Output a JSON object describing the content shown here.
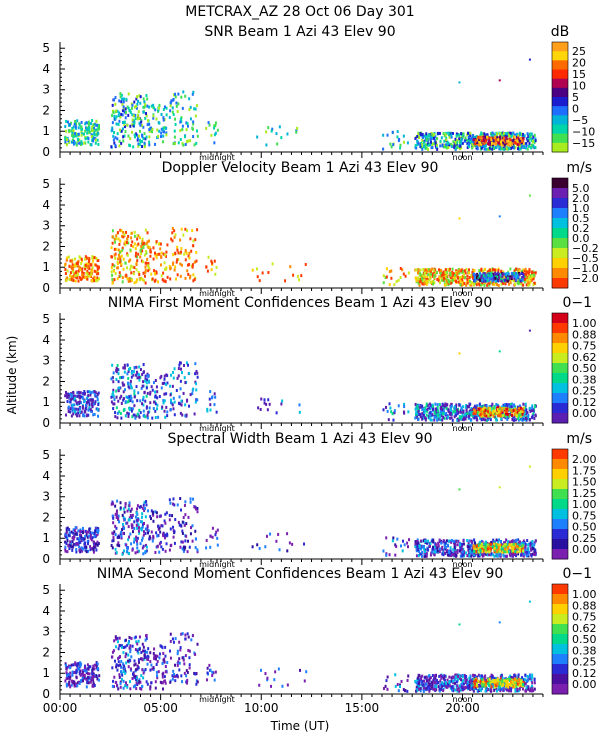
{
  "header": {
    "line1": "METCRAX_AZ  28 Oct 06 Day 301"
  },
  "xaxis": {
    "label": "Time (UT)",
    "ticks": [
      "00:00",
      "05:00",
      "10:00",
      "15:00",
      "20:00"
    ],
    "tick_hours": [
      0,
      5,
      10,
      15,
      20
    ],
    "range": [
      0,
      24
    ],
    "markers": [
      {
        "label": "midnight",
        "hour": 7.8
      },
      {
        "label": "noon",
        "hour": 20.0
      }
    ]
  },
  "yaxis": {
    "label": "Altitude (km)",
    "ticks": [
      "0",
      "1",
      "2",
      "3",
      "4",
      "5"
    ],
    "range": [
      0,
      5.3
    ]
  },
  "chart_data": [
    {
      "type": "heatmap",
      "title": "SNR Beam 1 Azi  43 Elev 90",
      "unit": "dB",
      "colorbar_labels": [
        "25",
        "20",
        "15",
        "10",
        "5",
        "0",
        "−5",
        "−10",
        "−15"
      ],
      "colors": [
        "#ff9f1c",
        "#ffd60a",
        "#ff6a00",
        "#ff2a00",
        "#b00050",
        "#4b0082",
        "#1c1ccf",
        "#1e6fff",
        "#00b4d8",
        "#00d4aa",
        "#40e050",
        "#a8ec20"
      ],
      "xlim": [
        0,
        24
      ],
      "ylim": [
        0,
        5.3
      ]
    },
    {
      "type": "heatmap",
      "title": "Doppler Velocity Beam 1 Azi  43 Elev 90",
      "unit": "m/s",
      "colorbar_labels": [
        "5.0",
        "2.0",
        "1.0",
        "0.5",
        "0.2",
        "0.0",
        "−0.2",
        "−0.5",
        "−1.0",
        "−2.0"
      ],
      "colors": [
        "#3a0030",
        "#6a1fb0",
        "#2b2bd6",
        "#1e7fff",
        "#00c0e0",
        "#00d98a",
        "#5ae040",
        "#c8ec20",
        "#ffd000",
        "#ff8a00",
        "#ff3a00"
      ],
      "xlim": [
        0,
        24
      ],
      "ylim": [
        0,
        5.3
      ]
    },
    {
      "type": "heatmap",
      "title": "NIMA First Moment Confidences Beam 1 Azi  43 Elev 90",
      "unit": "0−1",
      "colorbar_labels": [
        "1.00",
        "0.88",
        "0.75",
        "0.62",
        "0.50",
        "0.38",
        "0.25",
        "0.12",
        "0.00"
      ],
      "colors": [
        "#d4001a",
        "#ff3a00",
        "#ff8a00",
        "#ffd000",
        "#c8ec20",
        "#40e050",
        "#00d98a",
        "#00c0e0",
        "#1e7fff",
        "#2b2bd6",
        "#5a1fb0"
      ],
      "xlim": [
        0,
        24
      ],
      "ylim": [
        0,
        5.3
      ]
    },
    {
      "type": "heatmap",
      "title": "Spectral Width Beam 1 Azi  43 Elev 90",
      "unit": "m/s",
      "colorbar_labels": [
        "2.00",
        "1.75",
        "1.50",
        "1.25",
        "1.00",
        "0.75",
        "0.50",
        "0.25",
        "0.00"
      ],
      "colors": [
        "#ff3a00",
        "#ff8a00",
        "#ffd000",
        "#c8ec20",
        "#40e050",
        "#00d98a",
        "#00c0e0",
        "#1e7fff",
        "#2b2bd6",
        "#2a10a0",
        "#7a1fb0"
      ],
      "xlim": [
        0,
        24
      ],
      "ylim": [
        0,
        5.3
      ]
    },
    {
      "type": "heatmap",
      "title": "NIMA Second Moment Confidences Beam 1 Azi  43 Elev 90",
      "unit": "0−1",
      "colorbar_labels": [
        "1.00",
        "0.88",
        "0.75",
        "0.62",
        "0.50",
        "0.38",
        "0.25",
        "0.12",
        "0.00"
      ],
      "colors": [
        "#ff3a00",
        "#ff8a00",
        "#ffd000",
        "#c8ec20",
        "#40e050",
        "#00d98a",
        "#00c0e0",
        "#1e7fff",
        "#2b2bd6",
        "#4b10a0",
        "#7a1fb0"
      ],
      "xlim": [
        0,
        24
      ],
      "ylim": [
        0,
        5.3
      ]
    }
  ]
}
